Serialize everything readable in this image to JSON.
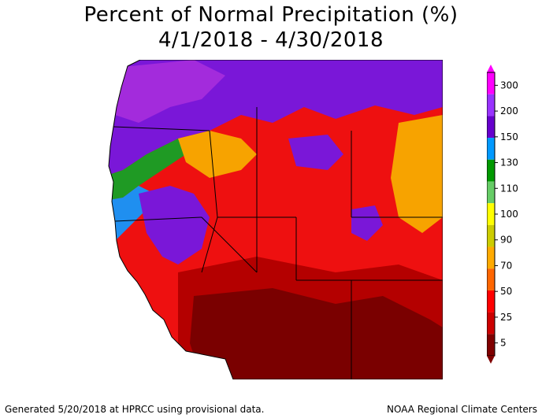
{
  "title": {
    "line1": "Percent of Normal Precipitation (%)",
    "line2": "4/1/2018 - 4/30/2018"
  },
  "legend": {
    "labels": [
      "300",
      "200",
      "150",
      "130",
      "110",
      "100",
      "90",
      "70",
      "50",
      "25",
      "5"
    ],
    "colors": [
      "#ff00ff",
      "#9933ff",
      "#6600cc",
      "#0099ff",
      "#009900",
      "#66cc66",
      "#ffff00",
      "#cccc00",
      "#ffaa00",
      "#ff6600",
      "#ff0000",
      "#cc0000",
      "#800000"
    ]
  },
  "map": {
    "region": "Western United States",
    "colors": {
      "purple": "#7a17d8",
      "violet": "#a32bdc",
      "blue": "#1f8ff0",
      "green": "#1f9a24",
      "lightgreen": "#62cb57",
      "yellow": "#e9e900",
      "olive": "#c5c500",
      "orange": "#f7a300",
      "darkorange": "#f07000",
      "red": "#ee1010",
      "darkred": "#b40000",
      "maroon": "#7a0000"
    }
  },
  "footer": {
    "left": "Generated 5/20/2018 at HPRCC using provisional data.",
    "right": "NOAA Regional Climate Centers"
  }
}
